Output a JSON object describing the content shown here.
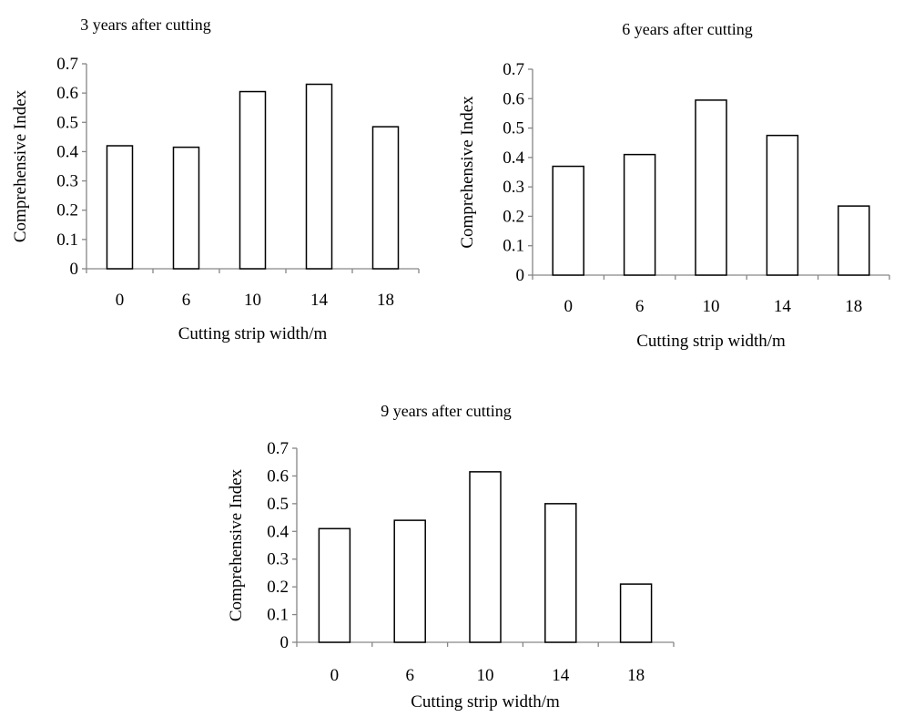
{
  "colors": {
    "background": "#ffffff",
    "bar_fill": "#ffffff",
    "bar_stroke": "#000000",
    "axis": "#868686",
    "text": "#000000"
  },
  "chart_data": [
    {
      "type": "bar",
      "title": "3 years after cutting",
      "xlabel": "Cutting strip width/m",
      "ylabel": "Comprehensive Index",
      "categories": [
        "0",
        "6",
        "10",
        "14",
        "18"
      ],
      "values": [
        0.42,
        0.415,
        0.605,
        0.63,
        0.485
      ],
      "ylim": [
        0,
        0.7
      ],
      "yticks": [
        "0",
        "0.1",
        "0.2",
        "0.3",
        "0.4",
        "0.5",
        "0.6",
        "0.7"
      ],
      "grid": false,
      "legend": "none"
    },
    {
      "type": "bar",
      "title": "6 years after cutting",
      "xlabel": "Cutting strip width/m",
      "ylabel": "Comprehensive Index",
      "categories": [
        "0",
        "6",
        "10",
        "14",
        "18"
      ],
      "values": [
        0.37,
        0.41,
        0.595,
        0.475,
        0.235
      ],
      "ylim": [
        0,
        0.7
      ],
      "yticks": [
        "0",
        "0.1",
        "0.2",
        "0.3",
        "0.4",
        "0.5",
        "0.6",
        "0.7"
      ],
      "grid": false,
      "legend": "none"
    },
    {
      "type": "bar",
      "title": "9 years after cutting",
      "xlabel": "Cutting strip width/m",
      "ylabel": "Comprehensive Index",
      "categories": [
        "0",
        "6",
        "10",
        "14",
        "18"
      ],
      "values": [
        0.41,
        0.44,
        0.615,
        0.5,
        0.21
      ],
      "ylim": [
        0,
        0.7
      ],
      "yticks": [
        "0",
        "0.1",
        "0.2",
        "0.3",
        "0.4",
        "0.5",
        "0.6",
        "0.7"
      ],
      "grid": false,
      "legend": "none"
    }
  ]
}
